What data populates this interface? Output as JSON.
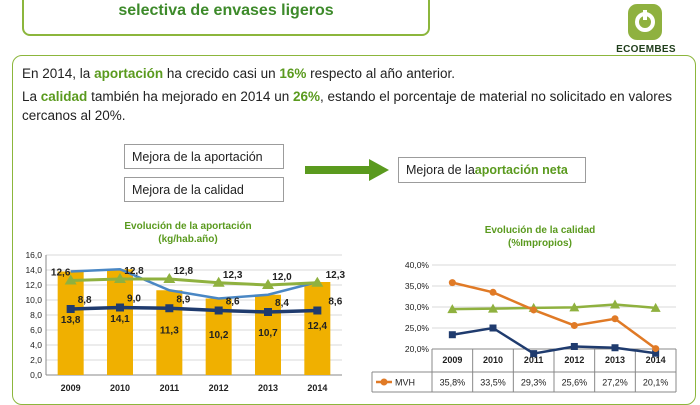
{
  "header": {
    "title": "selectiva de envases ligeros",
    "logo_text": "ECOEMBES"
  },
  "body": {
    "line1": {
      "pre": "En 2014, la ",
      "k1": "aportación",
      "mid": " ha crecido casi un ",
      "k2": "16%",
      "post": " respecto al año anterior."
    },
    "line2": {
      "pre": "La ",
      "k1": "calidad",
      "mid": " también ha mejorado en 2014 un ",
      "k2": "26%",
      "post": ", estando el porcentaje de material no solicitado en valores cercanos al 20%."
    }
  },
  "boxes": {
    "mejora_aportacion": "Mejora de la aportación",
    "mejora_calidad": "Mejora de la calidad",
    "result_pre": "Mejora de la ",
    "result_bold": "aportación neta"
  },
  "colors": {
    "green_brand": "#5a9a1e",
    "bar_yellow": "#f0b000",
    "light_blue": "#4a87c4",
    "dark_blue": "#1f3b6e",
    "olive_green": "#8fb13f",
    "orange": "#e07a26"
  },
  "chart_data": [
    {
      "type": "bar",
      "title": "Evolución de la aportación",
      "subtitle": "(kg/hab.año)",
      "categories": [
        "2009",
        "2010",
        "2011",
        "2012",
        "2013",
        "2014"
      ],
      "ylim": [
        0,
        16
      ],
      "yticks": [
        "0,0",
        "2,0",
        "4,0",
        "6,0",
        "8,0",
        "10,0",
        "12,0",
        "14,0",
        "16,0"
      ],
      "grid": true,
      "series": [
        {
          "type": "bar",
          "values": [
            13.8,
            14.1,
            11.3,
            10.2,
            10.7,
            12.4
          ],
          "labels": [
            "13,8",
            "14,1",
            "11,3",
            "10,2",
            "10,7",
            "12,4"
          ]
        },
        {
          "type": "line",
          "values": [
            13.8,
            14.1,
            11.3,
            10.2,
            10.7,
            12.4
          ]
        },
        {
          "type": "line",
          "values": [
            8.8,
            9.0,
            8.9,
            8.6,
            8.4,
            8.6
          ],
          "labels": [
            "8,8",
            "9,0",
            "8,9",
            "8,6",
            "8,4",
            "8,6"
          ]
        },
        {
          "type": "line",
          "values": [
            12.6,
            12.8,
            12.8,
            12.3,
            12.0,
            12.3
          ],
          "labels": [
            "12,6",
            "12,8",
            "12,8",
            "12,3",
            "12,0",
            "12,3"
          ]
        }
      ]
    },
    {
      "type": "line",
      "title": "Evolución de la calidad",
      "subtitle": "(%Impropios)",
      "categories": [
        "2009",
        "2010",
        "2011",
        "2012",
        "2013",
        "2014"
      ],
      "ylim": [
        20,
        40
      ],
      "yticks": [
        "20,0%",
        "25,0%",
        "30,0%",
        "35,0%",
        "40,0%"
      ],
      "grid": true,
      "series": [
        {
          "name": "MVH",
          "values": [
            35.8,
            33.5,
            29.3,
            25.6,
            27.2,
            20.1
          ],
          "labels": [
            "35,8%",
            "33,5%",
            "29,3%",
            "25,6%",
            "27,2%",
            "20,1%"
          ]
        },
        {
          "values": [
            23.4,
            25.0,
            18.9,
            20.6,
            20.3,
            19.0
          ]
        },
        {
          "values": [
            29.5,
            29.6,
            29.8,
            29.9,
            30.6,
            29.8
          ]
        }
      ]
    }
  ]
}
